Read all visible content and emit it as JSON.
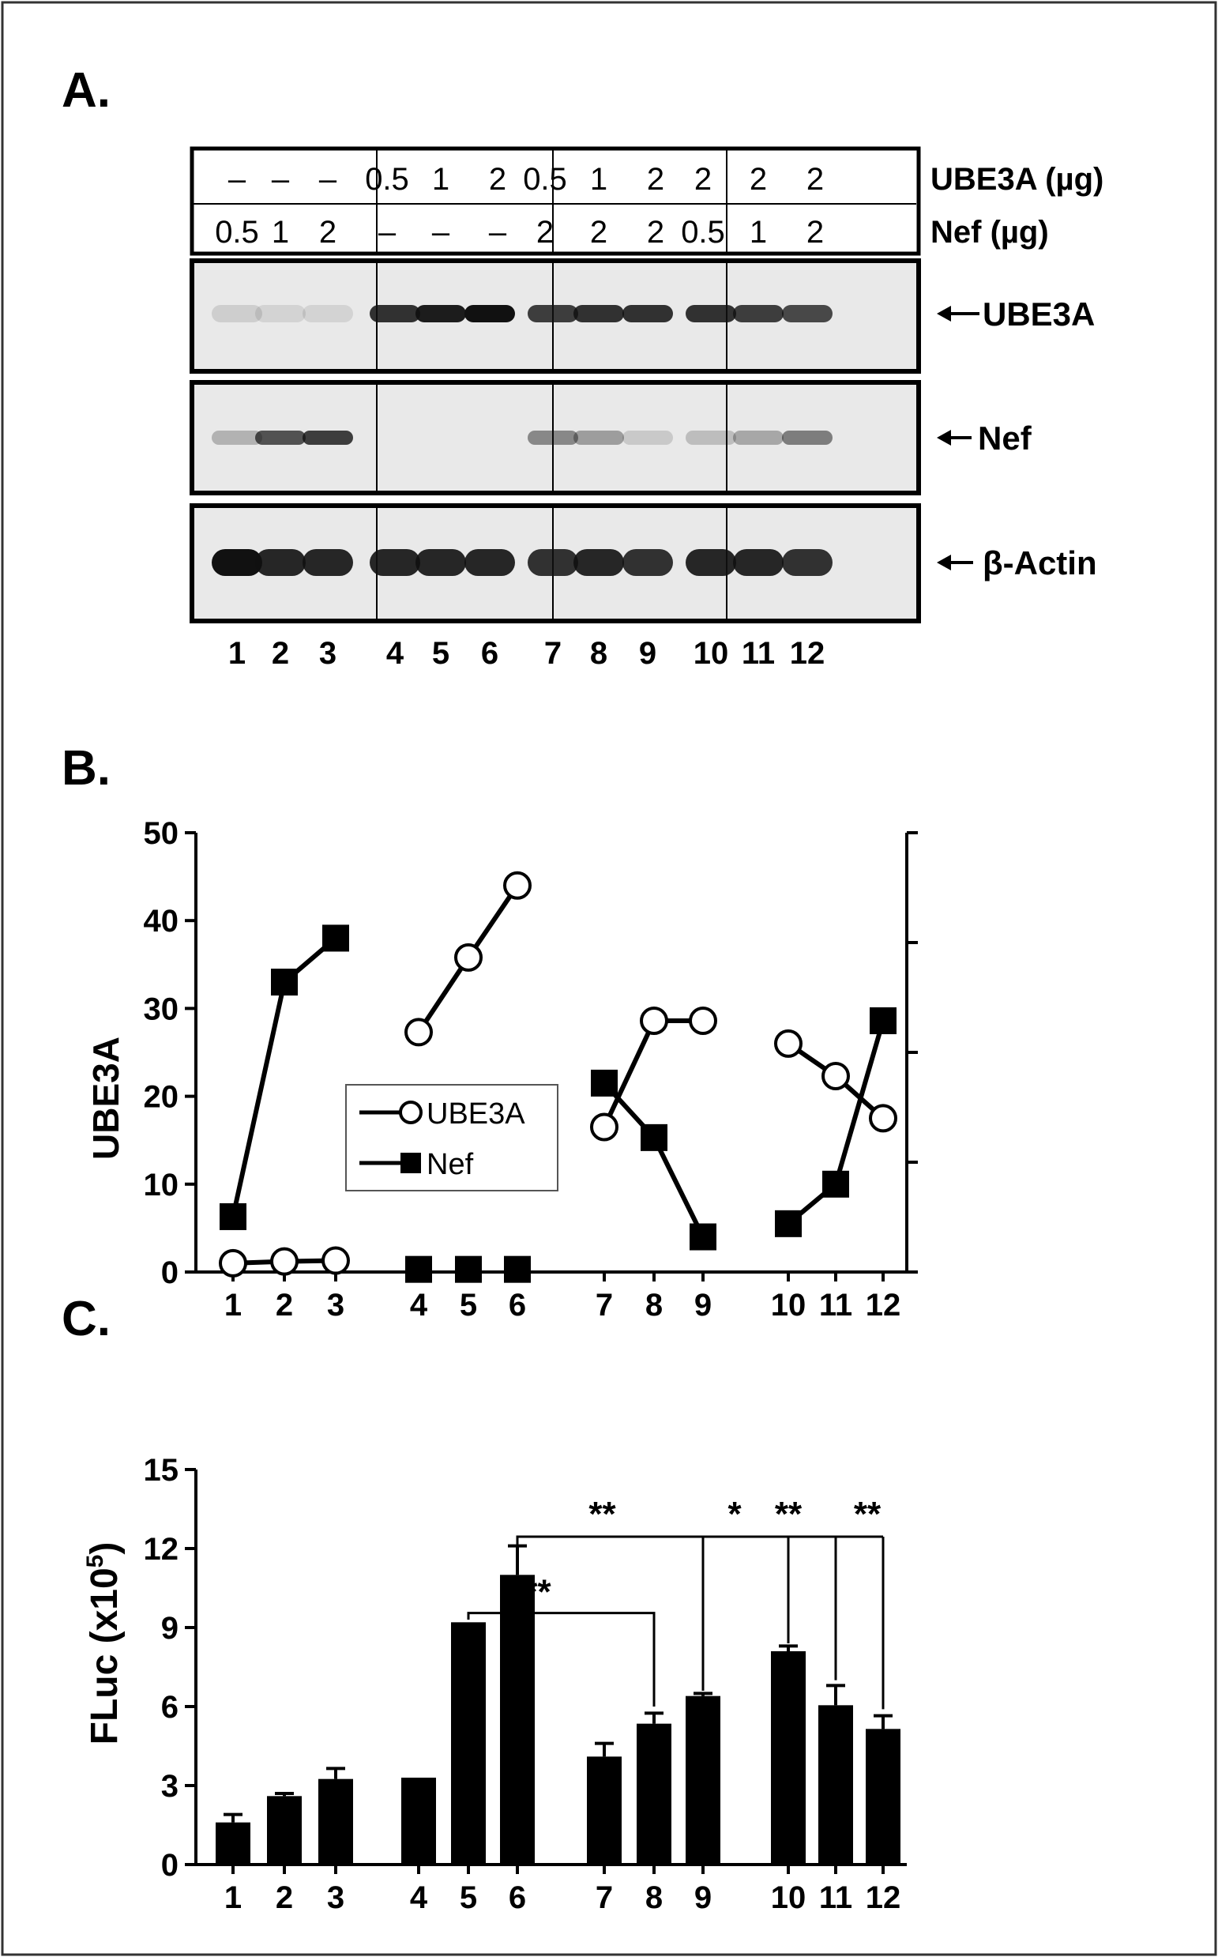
{
  "panels": {
    "a": "A.",
    "b": "B.",
    "c": "C."
  },
  "blot": {
    "row_labels": {
      "ube3a_amount": "UBE3A (µg)",
      "nef_amount": "Nef (µg)"
    },
    "ube3a_amounts": [
      "–",
      "–",
      "–",
      "0.5",
      "1",
      "2",
      "0.5",
      "1",
      "2",
      "2",
      "2",
      "2"
    ],
    "nef_amounts": [
      "0.5",
      "1",
      "2",
      "–",
      "–",
      "–",
      "2",
      "2",
      "2",
      "0.5",
      "1",
      "2"
    ],
    "band_labels": [
      "UBE3A",
      "Nef",
      "β-Actin"
    ],
    "lanes": [
      "1",
      "2",
      "3",
      "4",
      "5",
      "6",
      "7",
      "8",
      "9",
      "10",
      "11",
      "12"
    ],
    "band_intensity": {
      "ube3a": [
        0.12,
        0.1,
        0.1,
        0.85,
        0.95,
        1.0,
        0.8,
        0.85,
        0.85,
        0.85,
        0.8,
        0.75
      ],
      "nef": [
        0.25,
        0.7,
        0.8,
        0,
        0,
        0,
        0.45,
        0.35,
        0.15,
        0.2,
        0.3,
        0.5
      ],
      "actin": [
        1.0,
        0.9,
        0.9,
        0.9,
        0.9,
        0.9,
        0.85,
        0.9,
        0.85,
        0.9,
        0.9,
        0.85
      ]
    },
    "colors": {
      "band": "#111111",
      "border": "#000000"
    }
  },
  "chart_data": [
    {
      "type": "line",
      "panel": "B.",
      "ylabel": "UBE3A",
      "ylim": [
        0,
        50
      ],
      "yticks": [
        0,
        10,
        20,
        30,
        40,
        50
      ],
      "x_ticks": [
        "1",
        "2",
        "3",
        "4",
        "5",
        "6",
        "7",
        "8",
        "9",
        "10",
        "11",
        "12"
      ],
      "legend": {
        "position": "center-left",
        "entries": [
          "UBE3A",
          "Nef"
        ]
      },
      "series": [
        {
          "name": "UBE3A",
          "marker": "open-circle",
          "groups": [
            [
              [
                1,
                1
              ],
              [
                2,
                1.2
              ],
              [
                3,
                1.3
              ]
            ],
            [
              [
                4,
                27.3
              ],
              [
                5,
                35.8
              ],
              [
                6,
                44
              ]
            ],
            [
              [
                7,
                16.5
              ],
              [
                8,
                28.6
              ],
              [
                9,
                28.6
              ]
            ],
            [
              [
                10,
                26
              ],
              [
                11,
                22.3
              ],
              [
                12,
                17.5
              ]
            ]
          ]
        },
        {
          "name": "Nef",
          "marker": "filled-square",
          "groups": [
            [
              [
                1,
                6.3
              ],
              [
                2,
                33
              ],
              [
                3,
                38
              ]
            ],
            [
              [
                4,
                0.3
              ]
            ],
            [
              [
                5,
                0.3
              ]
            ],
            [
              [
                6,
                0.3
              ]
            ],
            [
              [
                7,
                21.5
              ],
              [
                8,
                15.3
              ],
              [
                9,
                4
              ]
            ],
            [
              [
                10,
                5.5
              ],
              [
                11,
                10
              ],
              [
                12,
                28.6
              ]
            ]
          ]
        }
      ]
    },
    {
      "type": "bar",
      "panel": "C.",
      "ylabel": "FLuc (x10",
      "ylabel_sup": "5",
      "ylabel_end": ")",
      "ylim": [
        0,
        15
      ],
      "yticks": [
        0,
        3,
        6,
        9,
        12,
        15
      ],
      "categories": [
        "1",
        "2",
        "3",
        "4",
        "5",
        "6",
        "7",
        "8",
        "9",
        "10",
        "11",
        "12"
      ],
      "values": [
        1.6,
        2.6,
        3.25,
        3.3,
        9.2,
        11.0,
        4.1,
        5.35,
        6.4,
        8.1,
        6.05,
        5.15
      ],
      "errors": [
        0.3,
        0.1,
        0.4,
        0,
        0,
        1.1,
        0.5,
        0.4,
        0.1,
        0.2,
        0.75,
        0.5
      ],
      "bar_color": "#000000",
      "significance": [
        {
          "from": "5",
          "to": [
            "8"
          ],
          "label": "**"
        },
        {
          "from": "6",
          "to": [
            "9",
            "10",
            "11",
            "12"
          ],
          "labels": [
            "*",
            "**",
            "**"
          ],
          "first_label": "**"
        }
      ]
    }
  ]
}
